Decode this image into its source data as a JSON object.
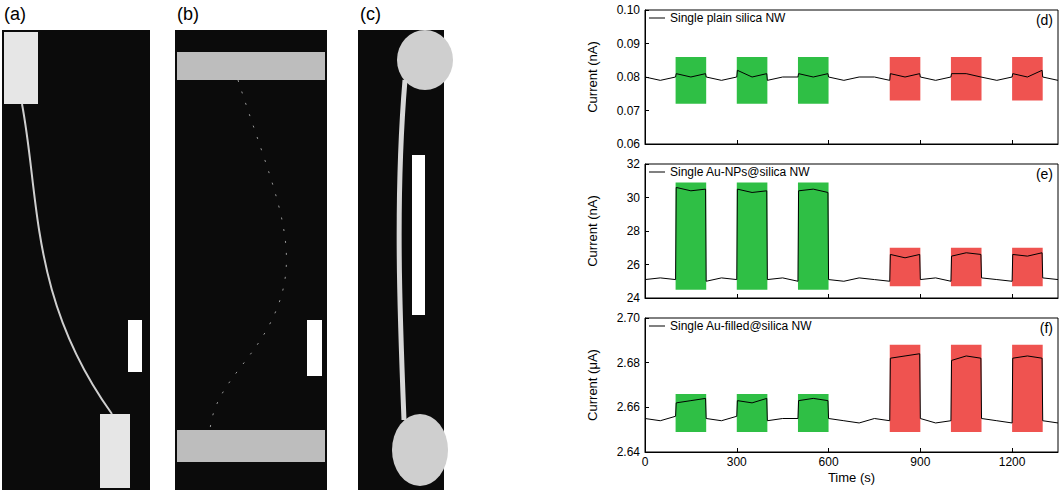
{
  "panels": [
    {
      "label": "(a)"
    },
    {
      "label": "(b)"
    },
    {
      "label": "(c)"
    }
  ],
  "chart_data": [
    {
      "type": "line",
      "title": "(d)",
      "legend": "top-left",
      "tick_labels": "y",
      "x": [
        0,
        50,
        100,
        102,
        150,
        198,
        200,
        250,
        300,
        302,
        350,
        398,
        400,
        450,
        500,
        502,
        550,
        598,
        600,
        650,
        700,
        750,
        800,
        802,
        850,
        898,
        900,
        950,
        1000,
        1002,
        1050,
        1098,
        1100,
        1150,
        1200,
        1202,
        1250,
        1298,
        1300,
        1350
      ],
      "series": [
        {
          "name": "Single plain silica NW",
          "color": "#000000",
          "values": [
            0.08,
            0.079,
            0.08,
            0.081,
            0.08,
            0.081,
            0.08,
            0.079,
            0.08,
            0.082,
            0.08,
            0.081,
            0.079,
            0.08,
            0.08,
            0.081,
            0.08,
            0.081,
            0.08,
            0.079,
            0.08,
            0.08,
            0.079,
            0.081,
            0.08,
            0.081,
            0.08,
            0.079,
            0.08,
            0.081,
            0.081,
            0.08,
            0.08,
            0.079,
            0.08,
            0.081,
            0.08,
            0.082,
            0.08,
            0.079
          ]
        }
      ],
      "xlim": [
        0,
        1350
      ],
      "xticks": [
        0,
        300,
        600,
        900,
        1200
      ],
      "ylim": [
        0.06,
        0.1
      ],
      "yticks": [
        0.06,
        0.07,
        0.08,
        0.09,
        {
          "value": 0.1,
          "label": "0.10"
        }
      ],
      "ylabel": "Current (nA)",
      "shaded_regions": [
        {
          "start": 100,
          "end": 200,
          "ymin": 0.072,
          "ymax": 0.086,
          "color": "#2fbf45"
        },
        {
          "start": 300,
          "end": 400,
          "ymin": 0.072,
          "ymax": 0.086,
          "color": "#2fbf45"
        },
        {
          "start": 500,
          "end": 600,
          "ymin": 0.072,
          "ymax": 0.086,
          "color": "#2fbf45"
        },
        {
          "start": 800,
          "end": 900,
          "ymin": 0.073,
          "ymax": 0.086,
          "color": "#ef5350"
        },
        {
          "start": 1000,
          "end": 1100,
          "ymin": 0.073,
          "ymax": 0.086,
          "color": "#ef5350"
        },
        {
          "start": 1200,
          "end": 1300,
          "ymin": 0.073,
          "ymax": 0.086,
          "color": "#ef5350"
        }
      ]
    },
    {
      "type": "line",
      "title": "(e)",
      "legend": "top-left",
      "tick_labels": "y",
      "x": [
        0,
        50,
        100,
        102,
        150,
        198,
        200,
        250,
        300,
        302,
        350,
        398,
        400,
        450,
        500,
        502,
        550,
        598,
        600,
        650,
        700,
        750,
        800,
        802,
        850,
        898,
        900,
        950,
        1000,
        1002,
        1050,
        1098,
        1100,
        1150,
        1200,
        1202,
        1250,
        1298,
        1300,
        1350
      ],
      "series": [
        {
          "name": "Single Au-NPs@silica NW",
          "color": "#000000",
          "values": [
            25.1,
            25.2,
            25.1,
            30.6,
            30.4,
            30.5,
            25.0,
            25.2,
            25.1,
            30.5,
            30.3,
            30.4,
            25.1,
            25.2,
            25.0,
            30.4,
            30.5,
            30.3,
            25.1,
            25.0,
            25.2,
            25.1,
            25.0,
            26.6,
            26.4,
            26.6,
            25.1,
            25.2,
            25.0,
            26.5,
            26.7,
            26.6,
            25.2,
            25.1,
            25.0,
            26.6,
            26.5,
            26.7,
            25.2,
            25.1
          ]
        }
      ],
      "xlim": [
        0,
        1350
      ],
      "xticks": [
        0,
        300,
        600,
        900,
        1200
      ],
      "ylim": [
        24,
        32
      ],
      "yticks": [
        24,
        26,
        28,
        30,
        32
      ],
      "ylabel": "Current (nA)",
      "shaded_regions": [
        {
          "start": 100,
          "end": 200,
          "ymin": 24.5,
          "ymax": 30.9,
          "color": "#2fbf45"
        },
        {
          "start": 300,
          "end": 400,
          "ymin": 24.5,
          "ymax": 30.9,
          "color": "#2fbf45"
        },
        {
          "start": 500,
          "end": 600,
          "ymin": 24.5,
          "ymax": 30.9,
          "color": "#2fbf45"
        },
        {
          "start": 800,
          "end": 900,
          "ymin": 24.7,
          "ymax": 27.0,
          "color": "#ef5350"
        },
        {
          "start": 1000,
          "end": 1100,
          "ymin": 24.7,
          "ymax": 27.0,
          "color": "#ef5350"
        },
        {
          "start": 1200,
          "end": 1300,
          "ymin": 24.7,
          "ymax": 27.0,
          "color": "#ef5350"
        }
      ]
    },
    {
      "type": "line",
      "title": "(f)",
      "legend": "top-left",
      "x": [
        0,
        50,
        100,
        102,
        150,
        198,
        200,
        250,
        300,
        302,
        350,
        398,
        400,
        450,
        500,
        502,
        550,
        598,
        600,
        650,
        700,
        750,
        800,
        802,
        850,
        898,
        900,
        950,
        1000,
        1002,
        1050,
        1098,
        1100,
        1150,
        1200,
        1202,
        1250,
        1298,
        1300,
        1350
      ],
      "series": [
        {
          "name": "Single Au-filled@silica NW",
          "color": "#000000",
          "values": [
            2.655,
            2.654,
            2.656,
            2.662,
            2.663,
            2.664,
            2.655,
            2.654,
            2.656,
            2.663,
            2.662,
            2.664,
            2.654,
            2.655,
            2.655,
            2.663,
            2.664,
            2.663,
            2.655,
            2.654,
            2.653,
            2.655,
            2.654,
            2.682,
            2.683,
            2.684,
            2.655,
            2.653,
            2.654,
            2.681,
            2.683,
            2.682,
            2.655,
            2.654,
            2.653,
            2.682,
            2.683,
            2.682,
            2.654,
            2.653
          ]
        }
      ],
      "xlim": [
        0,
        1350
      ],
      "xticks": [
        0,
        300,
        600,
        900,
        1200
      ],
      "ylim": [
        2.64,
        2.7
      ],
      "yticks": [
        2.64,
        2.66,
        2.68,
        {
          "value": 2.7,
          "label": "2.70"
        }
      ],
      "xlabel": "Time (s)",
      "ylabel": "Current (μA)",
      "shaded_regions": [
        {
          "start": 100,
          "end": 200,
          "ymin": 2.649,
          "ymax": 2.666,
          "color": "#2fbf45"
        },
        {
          "start": 300,
          "end": 400,
          "ymin": 2.649,
          "ymax": 2.666,
          "color": "#2fbf45"
        },
        {
          "start": 500,
          "end": 600,
          "ymin": 2.649,
          "ymax": 2.666,
          "color": "#2fbf45"
        },
        {
          "start": 800,
          "end": 900,
          "ymin": 2.649,
          "ymax": 2.688,
          "color": "#ef5350"
        },
        {
          "start": 1000,
          "end": 1100,
          "ymin": 2.649,
          "ymax": 2.688,
          "color": "#ef5350"
        },
        {
          "start": 1200,
          "end": 1300,
          "ymin": 2.649,
          "ymax": 2.688,
          "color": "#ef5350"
        }
      ]
    }
  ]
}
